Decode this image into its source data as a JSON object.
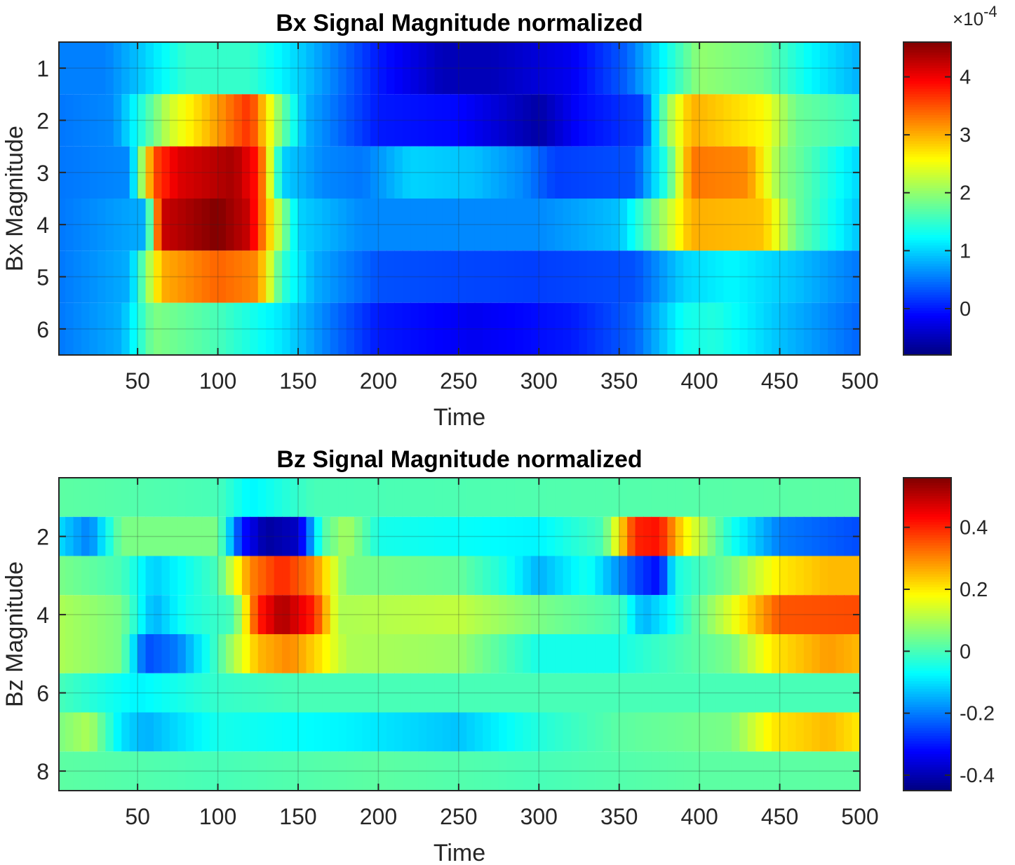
{
  "chart_data": [
    {
      "type": "heatmap",
      "title": "Bx Signal Magnitude normalized",
      "xlabel": "Time",
      "ylabel": "Bx Magnitude",
      "xlim": [
        1,
        500
      ],
      "ylim": [
        0.5,
        6.5
      ],
      "x_ticks": [
        "50",
        "100",
        "150",
        "200",
        "250",
        "300",
        "350",
        "400",
        "450",
        "500"
      ],
      "y_ticks": [
        "1",
        "2",
        "3",
        "4",
        "5",
        "6"
      ],
      "grid": true,
      "colormap": "jet",
      "clim": [
        -8e-05,
        0.00046
      ],
      "colorbar": {
        "ticks": [
          "0",
          "1",
          "2",
          "3",
          "4"
        ],
        "exponent_base": "×10",
        "exponent_power": "-4"
      },
      "rows": [
        {
          "row": 1,
          "keypoints": [
            [
              0,
              0.55
            ],
            [
              30,
              0.55
            ],
            [
              50,
              0.9
            ],
            [
              80,
              1.5
            ],
            [
              120,
              1.5
            ],
            [
              150,
              1.0
            ],
            [
              175,
              0.5
            ],
            [
              200,
              0.0
            ],
            [
              240,
              -0.5
            ],
            [
              270,
              -0.5
            ],
            [
              320,
              -0.2
            ],
            [
              355,
              0.4
            ],
            [
              380,
              1.3
            ],
            [
              400,
              2.0
            ],
            [
              440,
              1.8
            ],
            [
              470,
              1.2
            ],
            [
              500,
              0.8
            ]
          ]
        },
        {
          "row": 2,
          "keypoints": [
            [
              0,
              0.5
            ],
            [
              35,
              0.6
            ],
            [
              50,
              1.3
            ],
            [
              70,
              2.3
            ],
            [
              100,
              3.1
            ],
            [
              120,
              3.7
            ],
            [
              140,
              1.8
            ],
            [
              155,
              0.8
            ],
            [
              200,
              0.0
            ],
            [
              250,
              -0.1
            ],
            [
              300,
              -0.6
            ],
            [
              325,
              -0.1
            ],
            [
              350,
              0.1
            ],
            [
              365,
              0.2
            ],
            [
              380,
              2.0
            ],
            [
              395,
              3.0
            ],
            [
              440,
              2.6
            ],
            [
              460,
              1.8
            ],
            [
              500,
              1.5
            ]
          ]
        },
        {
          "row": 3,
          "keypoints": [
            [
              0,
              0.5
            ],
            [
              45,
              0.6
            ],
            [
              60,
              3.5
            ],
            [
              75,
              4.1
            ],
            [
              110,
              4.4
            ],
            [
              125,
              3.8
            ],
            [
              140,
              1.0
            ],
            [
              165,
              0.6
            ],
            [
              190,
              0.5
            ],
            [
              220,
              1.0
            ],
            [
              260,
              0.9
            ],
            [
              290,
              0.6
            ],
            [
              310,
              0.2
            ],
            [
              360,
              0.3
            ],
            [
              380,
              1.5
            ],
            [
              395,
              3.3
            ],
            [
              430,
              3.2
            ],
            [
              450,
              2.0
            ],
            [
              500,
              1.0
            ]
          ]
        },
        {
          "row": 4,
          "keypoints": [
            [
              0,
              0.5
            ],
            [
              55,
              0.8
            ],
            [
              65,
              4.2
            ],
            [
              100,
              4.6
            ],
            [
              120,
              4.2
            ],
            [
              135,
              2.5
            ],
            [
              150,
              1.0
            ],
            [
              190,
              0.6
            ],
            [
              300,
              0.6
            ],
            [
              350,
              0.9
            ],
            [
              380,
              2.2
            ],
            [
              395,
              3.0
            ],
            [
              440,
              2.9
            ],
            [
              460,
              1.8
            ],
            [
              500,
              0.9
            ]
          ]
        },
        {
          "row": 5,
          "keypoints": [
            [
              0,
              0.5
            ],
            [
              45,
              0.8
            ],
            [
              65,
              3.0
            ],
            [
              100,
              3.4
            ],
            [
              125,
              3.2
            ],
            [
              140,
              1.5
            ],
            [
              160,
              0.8
            ],
            [
              200,
              0.3
            ],
            [
              300,
              0.2
            ],
            [
              360,
              0.3
            ],
            [
              390,
              1.0
            ],
            [
              420,
              1.2
            ],
            [
              460,
              0.9
            ],
            [
              500,
              0.5
            ]
          ]
        },
        {
          "row": 6,
          "keypoints": [
            [
              0,
              0.5
            ],
            [
              40,
              0.8
            ],
            [
              60,
              1.9
            ],
            [
              100,
              1.6
            ],
            [
              140,
              1.1
            ],
            [
              170,
              0.5
            ],
            [
              200,
              0.0
            ],
            [
              260,
              -0.2
            ],
            [
              320,
              0.0
            ],
            [
              360,
              0.4
            ],
            [
              390,
              1.3
            ],
            [
              410,
              1.4
            ],
            [
              450,
              0.9
            ],
            [
              500,
              0.4
            ]
          ]
        }
      ]
    },
    {
      "type": "heatmap",
      "title": "Bz Signal Magnitude normalized",
      "xlabel": "Time",
      "ylabel": "Bz Magnitude",
      "xlim": [
        1,
        500
      ],
      "ylim": [
        0.5,
        8.5
      ],
      "x_ticks": [
        "50",
        "100",
        "150",
        "200",
        "250",
        "300",
        "350",
        "400",
        "450",
        "500"
      ],
      "y_ticks": [
        "2",
        "4",
        "6",
        "8"
      ],
      "grid": true,
      "colormap": "jet",
      "clim": [
        -0.45,
        0.56
      ],
      "colorbar": {
        "ticks": [
          "-0.4",
          "-0.2",
          "0",
          "0.2",
          "0.4"
        ]
      },
      "rows": [
        {
          "row": 1,
          "keypoints": [
            [
              0,
              0.02
            ],
            [
              100,
              0.0
            ],
            [
              120,
              -0.08
            ],
            [
              160,
              0.0
            ],
            [
              500,
              0.02
            ]
          ]
        },
        {
          "row": 2,
          "keypoints": [
            [
              0,
              -0.1
            ],
            [
              20,
              -0.2
            ],
            [
              40,
              0.05
            ],
            [
              100,
              0.05
            ],
            [
              115,
              -0.3
            ],
            [
              130,
              -0.42
            ],
            [
              150,
              -0.38
            ],
            [
              165,
              0.0
            ],
            [
              180,
              0.1
            ],
            [
              200,
              -0.05
            ],
            [
              300,
              -0.08
            ],
            [
              340,
              0.0
            ],
            [
              360,
              0.4
            ],
            [
              375,
              0.42
            ],
            [
              390,
              0.2
            ],
            [
              420,
              -0.05
            ],
            [
              450,
              -0.2
            ],
            [
              500,
              -0.25
            ]
          ]
        },
        {
          "row": 3,
          "keypoints": [
            [
              0,
              0.05
            ],
            [
              40,
              0.0
            ],
            [
              60,
              -0.12
            ],
            [
              100,
              0.0
            ],
            [
              120,
              0.3
            ],
            [
              140,
              0.4
            ],
            [
              160,
              0.3
            ],
            [
              180,
              0.05
            ],
            [
              250,
              0.03
            ],
            [
              280,
              -0.05
            ],
            [
              300,
              -0.15
            ],
            [
              330,
              -0.05
            ],
            [
              360,
              -0.25
            ],
            [
              375,
              -0.32
            ],
            [
              385,
              -0.05
            ],
            [
              420,
              0.05
            ],
            [
              450,
              0.2
            ],
            [
              480,
              0.25
            ],
            [
              500,
              0.25
            ]
          ]
        },
        {
          "row": 4,
          "keypoints": [
            [
              0,
              0.1
            ],
            [
              40,
              0.05
            ],
            [
              60,
              -0.15
            ],
            [
              80,
              -0.05
            ],
            [
              110,
              0.0
            ],
            [
              125,
              0.4
            ],
            [
              140,
              0.52
            ],
            [
              160,
              0.4
            ],
            [
              175,
              0.1
            ],
            [
              250,
              0.12
            ],
            [
              300,
              0.05
            ],
            [
              350,
              0.0
            ],
            [
              365,
              -0.15
            ],
            [
              380,
              -0.08
            ],
            [
              420,
              0.15
            ],
            [
              450,
              0.35
            ],
            [
              500,
              0.36
            ]
          ]
        },
        {
          "row": 5,
          "keypoints": [
            [
              0,
              0.1
            ],
            [
              40,
              0.05
            ],
            [
              55,
              -0.25
            ],
            [
              75,
              -0.2
            ],
            [
              100,
              0.0
            ],
            [
              125,
              0.25
            ],
            [
              145,
              0.3
            ],
            [
              165,
              0.2
            ],
            [
              180,
              0.1
            ],
            [
              250,
              0.08
            ],
            [
              300,
              -0.05
            ],
            [
              350,
              -0.05
            ],
            [
              420,
              0.05
            ],
            [
              445,
              0.2
            ],
            [
              480,
              0.28
            ],
            [
              500,
              0.25
            ]
          ]
        },
        {
          "row": 6,
          "keypoints": [
            [
              0,
              0.0
            ],
            [
              50,
              -0.08
            ],
            [
              100,
              -0.02
            ],
            [
              150,
              0.0
            ],
            [
              250,
              0.0
            ],
            [
              350,
              0.0
            ],
            [
              500,
              0.0
            ]
          ]
        },
        {
          "row": 7,
          "keypoints": [
            [
              0,
              0.05
            ],
            [
              20,
              0.1
            ],
            [
              40,
              -0.1
            ],
            [
              55,
              -0.15
            ],
            [
              100,
              -0.05
            ],
            [
              180,
              -0.08
            ],
            [
              250,
              -0.13
            ],
            [
              290,
              -0.05
            ],
            [
              350,
              0.02
            ],
            [
              420,
              0.05
            ],
            [
              445,
              0.2
            ],
            [
              480,
              0.25
            ],
            [
              500,
              0.2
            ]
          ]
        },
        {
          "row": 8,
          "keypoints": [
            [
              0,
              0.02
            ],
            [
              100,
              0.0
            ],
            [
              200,
              0.02
            ],
            [
              300,
              0.0
            ],
            [
              400,
              0.02
            ],
            [
              500,
              0.02
            ]
          ]
        }
      ]
    }
  ]
}
